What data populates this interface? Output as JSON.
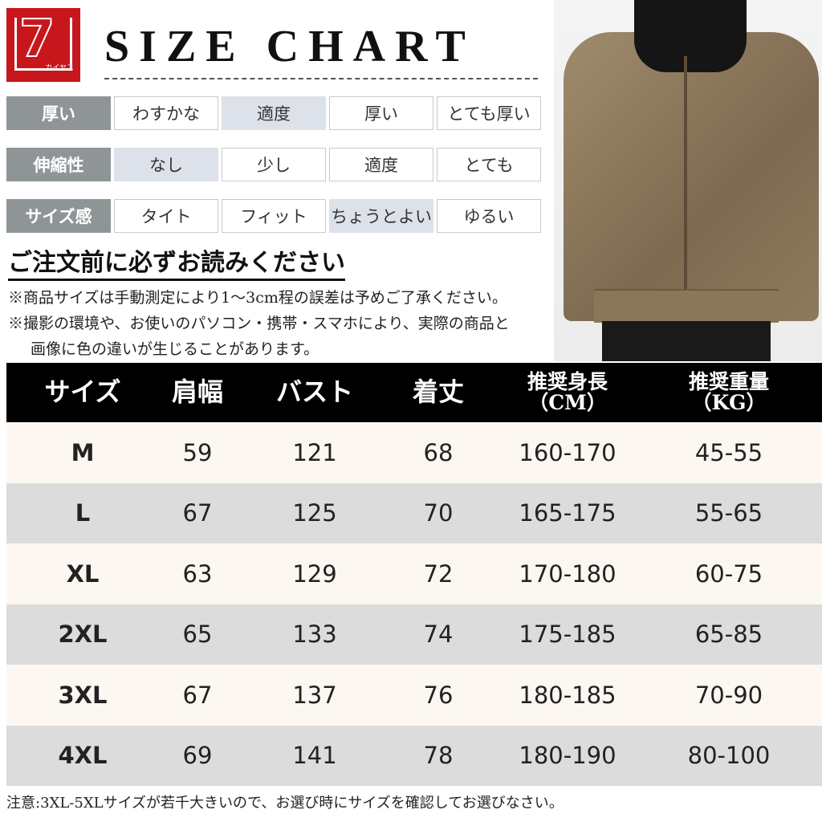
{
  "logo": {
    "brand_text": "カイヤス",
    "color": "#c8161d"
  },
  "title": "SIZE CHART",
  "attributes": [
    {
      "label": "厚い",
      "options": [
        "わすかな",
        "適度",
        "厚い",
        "とても厚い"
      ],
      "selected": 1
    },
    {
      "label": "伸縮性",
      "options": [
        "なし",
        "少し",
        "適度",
        "とても"
      ],
      "selected": 0
    },
    {
      "label": "サイズ感",
      "options": [
        "タイト",
        "フィット",
        "ちょうとよい",
        "ゆるい"
      ],
      "selected": 2
    }
  ],
  "notice": {
    "title": "ご注文前に必ずお読みください",
    "lines": [
      "※商品サイズは手動測定により1～3cm程の誤差は予めご了承ください。",
      "※撮影の環境や、お使いのパソコン・携帯・スマホにより、実際の商品と",
      "画像に色の違いが生じることがあります。"
    ]
  },
  "photo": {
    "description_icon": "product-photo-jacket"
  },
  "size_table": {
    "headers": [
      [
        "サイズ"
      ],
      [
        "肩幅"
      ],
      [
        "バスト"
      ],
      [
        "着丈"
      ],
      [
        "推奨身長",
        "（CM）"
      ],
      [
        "推奨重量",
        "（KG）"
      ]
    ],
    "rows": [
      [
        "M",
        "59",
        "121",
        "68",
        "160-170",
        "45-55"
      ],
      [
        "L",
        "67",
        "125",
        "70",
        "165-175",
        "55-65"
      ],
      [
        "XL",
        "63",
        "129",
        "72",
        "170-180",
        "60-75"
      ],
      [
        "2XL",
        "65",
        "133",
        "74",
        "175-185",
        "65-85"
      ],
      [
        "3XL",
        "67",
        "137",
        "76",
        "180-185",
        "70-90"
      ],
      [
        "4XL",
        "69",
        "141",
        "78",
        "180-190",
        "80-100"
      ]
    ]
  },
  "footer_note": "注意:3XL-5XLサイズが若千大きいので、お選び時にサイズを確認してお選びなさい。"
}
